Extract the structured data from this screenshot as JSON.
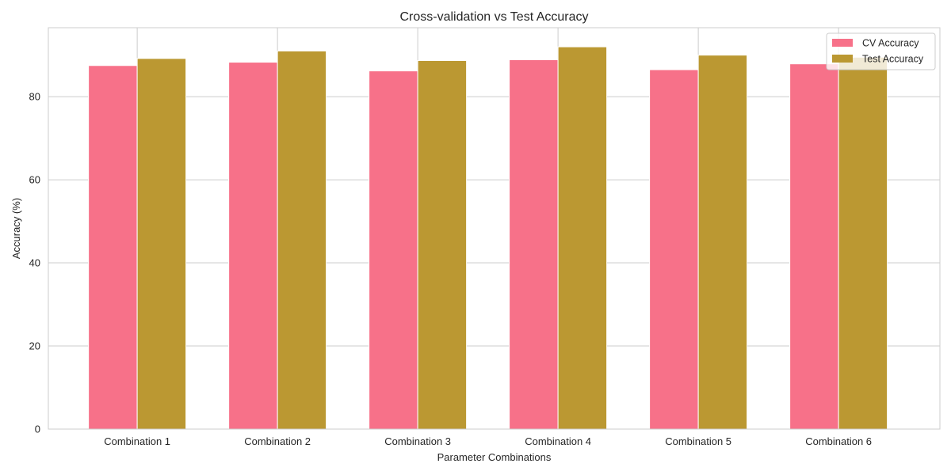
{
  "chart_data": {
    "type": "bar",
    "title": "Cross-validation vs Test Accuracy",
    "xlabel": "Parameter Combinations",
    "ylabel": "Accuracy (%)",
    "categories": [
      "Combination 1",
      "Combination 2",
      "Combination 3",
      "Combination 4",
      "Combination 5",
      "Combination 6"
    ],
    "series": [
      {
        "name": "CV Accuracy",
        "color": "#f77189",
        "values": [
          87.5,
          88.3,
          86.2,
          88.9,
          86.5,
          87.9
        ]
      },
      {
        "name": "Test Accuracy",
        "color": "#bb9832",
        "values": [
          89.2,
          91.0,
          88.7,
          92.0,
          90.0,
          89.5
        ]
      }
    ],
    "ylim": [
      0,
      96.6
    ],
    "yticks": [
      0,
      20,
      40,
      60,
      80
    ],
    "grid": true,
    "legend_position": "top-right"
  }
}
